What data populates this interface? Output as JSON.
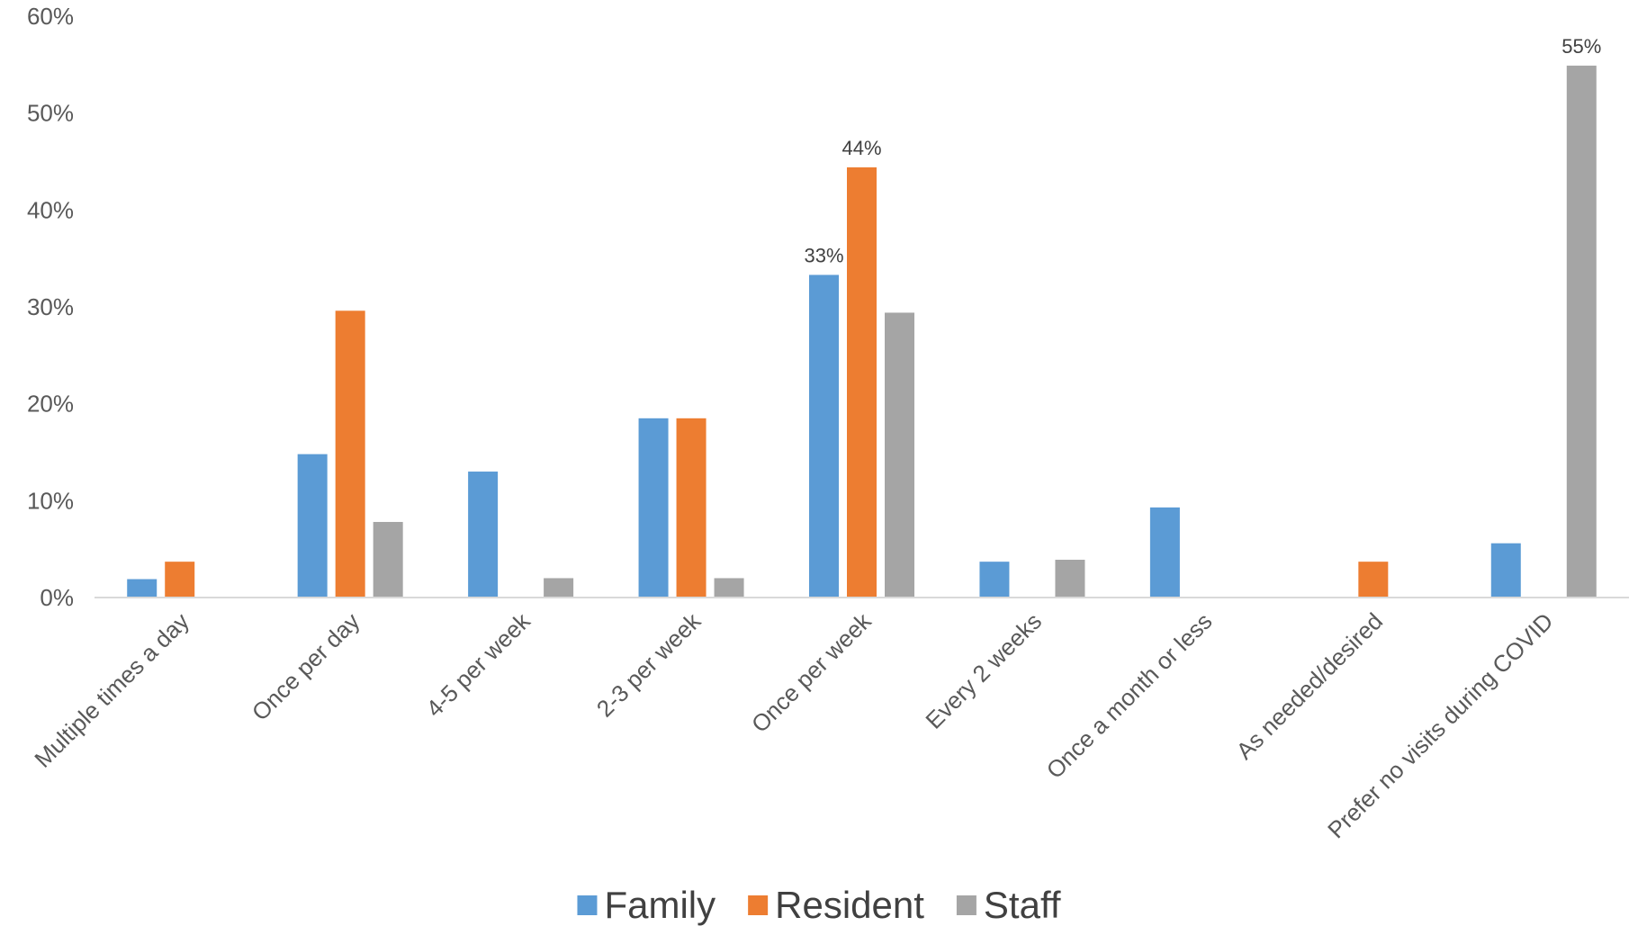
{
  "chart_data": {
    "type": "bar",
    "categories": [
      "Multiple times a day",
      "Once per day",
      "4-5 per week",
      "2-3 per week",
      "Once per week",
      "Every 2 weeks",
      "Once a month or less",
      "As needed/desired",
      "Prefer no visits during COVID"
    ],
    "series": [
      {
        "name": "Family",
        "color": "#5B9BD5",
        "values": [
          1.9,
          14.8,
          13,
          18.5,
          33.3,
          3.7,
          9.3,
          0,
          5.6
        ]
      },
      {
        "name": "Resident",
        "color": "#ED7D31",
        "values": [
          3.7,
          29.6,
          0,
          18.5,
          44.4,
          0,
          0,
          3.7,
          0
        ]
      },
      {
        "name": "Staff",
        "color": "#A5A5A5",
        "values": [
          0,
          7.8,
          2,
          2,
          29.4,
          3.9,
          0,
          0,
          54.9
        ]
      }
    ],
    "data_labels": [
      {
        "series": 0,
        "category": 4,
        "text": "33%"
      },
      {
        "series": 1,
        "category": 4,
        "text": "44%"
      },
      {
        "series": 2,
        "category": 8,
        "text": "55%"
      }
    ],
    "yticks": [
      "0%",
      "10%",
      "20%",
      "30%",
      "40%",
      "50%",
      "60%"
    ],
    "ylim": [
      0,
      60
    ],
    "xlabel": "",
    "ylabel": "",
    "title": "",
    "grid": false,
    "legend_position": "bottom"
  }
}
